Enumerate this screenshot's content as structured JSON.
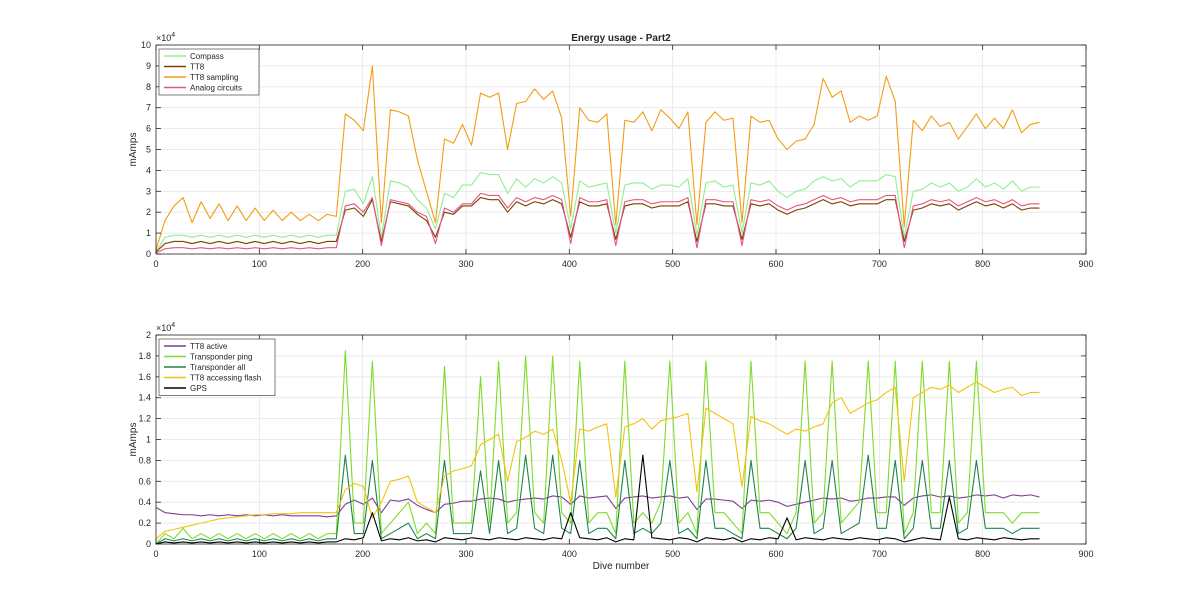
{
  "charts": [
    {
      "type": "line",
      "title": "Energy usage - Part2",
      "xlabel": "",
      "ylabel": "mAmps",
      "xlim": [
        0,
        900
      ],
      "ylim": [
        0,
        100000
      ],
      "x_ticks": [
        "0",
        "100",
        "200",
        "300",
        "400",
        "500",
        "600",
        "700",
        "800",
        "900"
      ],
      "y_ticks": [
        "0",
        "1",
        "2",
        "3",
        "4",
        "5",
        "6",
        "7",
        "8",
        "9",
        "10"
      ],
      "y_exponent": "×10",
      "y_exponent_power": "4",
      "grid": true,
      "legend_position": "top-left",
      "legend": [
        "Compass",
        "TT8",
        "TT8 sampling",
        "Analog circuits"
      ],
      "series": [
        {
          "name": "Compass",
          "color": "#90EE90",
          "values_x10000": [
            0.1,
            0.8,
            0.9,
            0.9,
            0.8,
            0.9,
            0.8,
            0.9,
            0.8,
            0.9,
            0.8,
            0.9,
            0.8,
            0.9,
            0.8,
            0.9,
            0.8,
            0.9,
            0.8,
            0.9,
            0.9,
            3.0,
            3.1,
            2.4,
            3.7,
            0.8,
            3.5,
            3.4,
            3.2,
            2.6,
            2.2,
            1.2,
            2.9,
            2.7,
            3.3,
            3.3,
            3.9,
            3.8,
            3.8,
            2.9,
            3.6,
            3.2,
            3.6,
            3.4,
            3.7,
            3.4,
            1.2,
            3.5,
            3.2,
            3.3,
            3.4,
            1.0,
            3.3,
            3.4,
            3.4,
            3.1,
            3.3,
            3.3,
            3.2,
            3.6,
            0.9,
            3.4,
            3.5,
            3.2,
            3.3,
            1.0,
            3.4,
            3.3,
            3.5,
            3.0,
            2.7,
            3.0,
            3.1,
            3.5,
            3.7,
            3.5,
            3.6,
            3.2,
            3.5,
            3.5,
            3.5,
            3.8,
            3.7,
            0.8,
            3.0,
            3.1,
            3.4,
            3.2,
            3.4,
            3.0,
            3.2,
            3.6,
            3.2,
            3.4,
            3.1,
            3.5,
            3.0,
            3.2,
            3.2
          ]
        },
        {
          "name": "TT8",
          "color": "#7B3F00",
          "values_x10000": [
            0.1,
            0.5,
            0.6,
            0.6,
            0.5,
            0.6,
            0.5,
            0.6,
            0.5,
            0.6,
            0.5,
            0.6,
            0.5,
            0.6,
            0.5,
            0.6,
            0.5,
            0.6,
            0.5,
            0.6,
            0.6,
            2.1,
            2.2,
            1.8,
            2.6,
            0.6,
            2.5,
            2.4,
            2.3,
            1.9,
            1.6,
            0.8,
            2.0,
            1.9,
            2.3,
            2.3,
            2.7,
            2.6,
            2.6,
            2.0,
            2.5,
            2.3,
            2.5,
            2.4,
            2.6,
            2.4,
            0.8,
            2.5,
            2.3,
            2.3,
            2.4,
            0.7,
            2.3,
            2.4,
            2.4,
            2.2,
            2.3,
            2.3,
            2.3,
            2.5,
            0.6,
            2.4,
            2.4,
            2.3,
            2.3,
            0.7,
            2.4,
            2.3,
            2.4,
            2.1,
            1.9,
            2.1,
            2.2,
            2.4,
            2.6,
            2.4,
            2.5,
            2.3,
            2.4,
            2.4,
            2.4,
            2.6,
            2.6,
            0.6,
            2.1,
            2.2,
            2.4,
            2.3,
            2.4,
            2.1,
            2.3,
            2.5,
            2.3,
            2.4,
            2.2,
            2.4,
            2.1,
            2.2,
            2.2
          ]
        },
        {
          "name": "TT8 sampling",
          "color": "#F39C12",
          "values_x10000": [
            0.2,
            1.6,
            2.3,
            2.7,
            1.5,
            2.5,
            1.7,
            2.4,
            1.6,
            2.3,
            1.6,
            2.2,
            1.6,
            2.1,
            1.6,
            2.0,
            1.6,
            1.9,
            1.6,
            1.9,
            1.8,
            6.7,
            6.4,
            5.9,
            9.0,
            1.5,
            6.9,
            6.8,
            6.6,
            4.5,
            3.0,
            1.5,
            5.5,
            5.3,
            6.2,
            5.2,
            7.7,
            7.5,
            7.7,
            5.0,
            7.2,
            7.3,
            7.9,
            7.4,
            7.8,
            6.5,
            1.8,
            7.0,
            6.4,
            6.3,
            6.7,
            1.4,
            6.4,
            6.3,
            6.8,
            5.9,
            6.9,
            6.5,
            6.0,
            6.8,
            1.4,
            6.3,
            6.8,
            6.4,
            6.5,
            1.5,
            6.6,
            6.3,
            6.4,
            5.5,
            5.0,
            5.4,
            5.5,
            6.2,
            8.4,
            7.5,
            7.8,
            6.3,
            6.6,
            6.4,
            6.6,
            8.5,
            7.3,
            1.3,
            6.4,
            5.9,
            6.6,
            6.1,
            6.3,
            5.5,
            6.1,
            6.7,
            6.0,
            6.5,
            6.0,
            6.9,
            5.8,
            6.2,
            6.3
          ]
        },
        {
          "name": "Analog circuits",
          "color": "#E75480",
          "values_x10000": [
            0.05,
            0.25,
            0.3,
            0.3,
            0.25,
            0.3,
            0.25,
            0.3,
            0.25,
            0.3,
            0.25,
            0.3,
            0.25,
            0.3,
            0.25,
            0.3,
            0.25,
            0.3,
            0.25,
            0.3,
            0.3,
            2.3,
            2.4,
            2.0,
            2.7,
            0.4,
            2.6,
            2.5,
            2.4,
            2.0,
            1.8,
            0.5,
            2.2,
            2.0,
            2.4,
            2.4,
            2.9,
            2.8,
            2.8,
            2.2,
            2.7,
            2.5,
            2.7,
            2.6,
            2.8,
            2.6,
            0.5,
            2.7,
            2.5,
            2.5,
            2.6,
            0.4,
            2.5,
            2.6,
            2.6,
            2.4,
            2.5,
            2.5,
            2.5,
            2.7,
            0.3,
            2.6,
            2.6,
            2.5,
            2.5,
            0.4,
            2.6,
            2.5,
            2.6,
            2.3,
            2.1,
            2.3,
            2.4,
            2.6,
            2.8,
            2.6,
            2.7,
            2.5,
            2.6,
            2.6,
            2.6,
            2.8,
            2.8,
            0.3,
            2.3,
            2.4,
            2.6,
            2.5,
            2.6,
            2.3,
            2.5,
            2.7,
            2.5,
            2.6,
            2.4,
            2.6,
            2.3,
            2.4,
            2.4
          ]
        }
      ]
    },
    {
      "type": "line",
      "title": "",
      "xlabel": "Dive number",
      "ylabel": "mAmps",
      "xlim": [
        0,
        900
      ],
      "ylim": [
        0,
        20000
      ],
      "x_ticks": [
        "0",
        "100",
        "200",
        "300",
        "400",
        "500",
        "600",
        "700",
        "800",
        "900"
      ],
      "y_ticks": [
        "0",
        "0.2",
        "0.4",
        "0.6",
        "0.8",
        "1",
        "1.2",
        "1.4",
        "1.6",
        "1.8",
        "2"
      ],
      "y_exponent": "×10",
      "y_exponent_power": "4",
      "grid": true,
      "legend_position": "top-left",
      "legend": [
        "TT8 active",
        "Transponder ping",
        "Transponder all",
        "TT8 accessing flash",
        "GPS"
      ],
      "series": [
        {
          "name": "TT8 active",
          "color": "#7D3C98",
          "values_x10000": [
            0.35,
            0.3,
            0.29,
            0.28,
            0.28,
            0.27,
            0.28,
            0.27,
            0.28,
            0.27,
            0.28,
            0.27,
            0.28,
            0.27,
            0.28,
            0.27,
            0.27,
            0.27,
            0.27,
            0.26,
            0.27,
            0.38,
            0.42,
            0.38,
            0.44,
            0.3,
            0.42,
            0.41,
            0.43,
            0.37,
            0.33,
            0.3,
            0.38,
            0.39,
            0.41,
            0.41,
            0.43,
            0.44,
            0.43,
            0.4,
            0.42,
            0.43,
            0.44,
            0.43,
            0.46,
            0.45,
            0.38,
            0.46,
            0.44,
            0.45,
            0.46,
            0.34,
            0.44,
            0.45,
            0.46,
            0.44,
            0.45,
            0.46,
            0.44,
            0.45,
            0.33,
            0.43,
            0.43,
            0.42,
            0.41,
            0.34,
            0.42,
            0.41,
            0.42,
            0.4,
            0.36,
            0.38,
            0.4,
            0.42,
            0.44,
            0.43,
            0.44,
            0.41,
            0.42,
            0.44,
            0.44,
            0.45,
            0.45,
            0.37,
            0.44,
            0.46,
            0.47,
            0.45,
            0.46,
            0.44,
            0.45,
            0.47,
            0.46,
            0.47,
            0.44,
            0.47,
            0.46,
            0.47,
            0.45
          ]
        },
        {
          "name": "Transponder ping",
          "color": "#7FDB2A",
          "values_x10000": [
            0.0,
            0.1,
            0.05,
            0.15,
            0.05,
            0.1,
            0.05,
            0.1,
            0.05,
            0.1,
            0.05,
            0.1,
            0.05,
            0.1,
            0.05,
            0.1,
            0.05,
            0.1,
            0.05,
            0.1,
            0.1,
            1.85,
            0.2,
            0.2,
            1.75,
            0.1,
            0.2,
            0.3,
            0.4,
            0.1,
            0.2,
            0.1,
            1.7,
            0.2,
            0.2,
            0.2,
            1.6,
            0.2,
            1.75,
            0.2,
            0.3,
            1.8,
            0.3,
            0.2,
            1.8,
            0.3,
            0.2,
            1.75,
            0.2,
            0.3,
            0.3,
            0.1,
            1.75,
            0.2,
            0.3,
            0.2,
            0.4,
            1.75,
            0.2,
            0.3,
            0.1,
            1.75,
            0.3,
            0.3,
            0.2,
            0.1,
            1.75,
            0.3,
            0.3,
            0.2,
            0.1,
            0.3,
            1.75,
            0.2,
            0.3,
            1.75,
            0.2,
            0.3,
            0.4,
            1.75,
            0.3,
            0.3,
            1.75,
            0.1,
            0.3,
            1.75,
            0.3,
            0.3,
            1.75,
            0.2,
            0.3,
            1.75,
            0.3,
            0.3,
            0.3,
            0.2,
            0.3,
            0.3,
            0.3
          ]
        },
        {
          "name": "Transponder all",
          "color": "#1E8449",
          "values_x10000": [
            0.0,
            0.05,
            0.03,
            0.05,
            0.03,
            0.05,
            0.03,
            0.05,
            0.03,
            0.05,
            0.03,
            0.05,
            0.03,
            0.05,
            0.03,
            0.05,
            0.03,
            0.05,
            0.03,
            0.05,
            0.05,
            0.85,
            0.1,
            0.1,
            0.8,
            0.05,
            0.1,
            0.15,
            0.2,
            0.05,
            0.1,
            0.05,
            0.8,
            0.1,
            0.1,
            0.1,
            0.7,
            0.1,
            0.8,
            0.1,
            0.15,
            0.85,
            0.15,
            0.1,
            0.85,
            0.15,
            0.1,
            0.8,
            0.1,
            0.15,
            0.15,
            0.05,
            0.8,
            0.1,
            0.15,
            0.1,
            0.2,
            0.8,
            0.1,
            0.15,
            0.05,
            0.8,
            0.15,
            0.15,
            0.1,
            0.05,
            0.8,
            0.15,
            0.15,
            0.1,
            0.05,
            0.15,
            0.8,
            0.1,
            0.15,
            0.8,
            0.1,
            0.15,
            0.2,
            0.85,
            0.15,
            0.15,
            0.8,
            0.05,
            0.15,
            0.8,
            0.15,
            0.15,
            0.8,
            0.1,
            0.15,
            0.8,
            0.15,
            0.15,
            0.15,
            0.1,
            0.15,
            0.15,
            0.15
          ]
        },
        {
          "name": "TT8 accessing flash",
          "color": "#F4C20D",
          "values_x10000": [
            0.05,
            0.12,
            0.14,
            0.16,
            0.18,
            0.2,
            0.22,
            0.24,
            0.25,
            0.26,
            0.27,
            0.28,
            0.28,
            0.29,
            0.29,
            0.29,
            0.3,
            0.3,
            0.3,
            0.3,
            0.3,
            0.52,
            0.58,
            0.55,
            0.25,
            0.4,
            0.6,
            0.62,
            0.65,
            0.4,
            0.35,
            0.3,
            0.65,
            0.7,
            0.72,
            0.75,
            0.95,
            1.0,
            1.05,
            0.6,
            0.98,
            1.02,
            1.08,
            1.05,
            1.1,
            0.8,
            0.4,
            1.1,
            1.08,
            1.12,
            1.15,
            0.45,
            1.12,
            1.15,
            1.2,
            1.1,
            1.18,
            1.2,
            1.22,
            1.25,
            0.5,
            1.3,
            1.25,
            1.2,
            1.15,
            0.55,
            1.22,
            1.18,
            1.15,
            1.1,
            1.05,
            1.1,
            1.08,
            1.12,
            1.15,
            1.35,
            1.4,
            1.25,
            1.3,
            1.35,
            1.38,
            1.45,
            1.5,
            0.6,
            1.4,
            1.45,
            1.5,
            1.48,
            1.52,
            1.45,
            1.5,
            1.55,
            1.5,
            1.45,
            1.48,
            1.5,
            1.42,
            1.45,
            1.45
          ]
        },
        {
          "name": "GPS",
          "color": "#000000",
          "values_x10000": [
            0.0,
            0.02,
            0.01,
            0.02,
            0.01,
            0.02,
            0.01,
            0.02,
            0.01,
            0.02,
            0.01,
            0.02,
            0.01,
            0.02,
            0.01,
            0.02,
            0.01,
            0.02,
            0.01,
            0.02,
            0.02,
            0.05,
            0.04,
            0.06,
            0.3,
            0.03,
            0.05,
            0.04,
            0.06,
            0.03,
            0.04,
            0.02,
            0.06,
            0.05,
            0.04,
            0.06,
            0.05,
            0.04,
            0.06,
            0.05,
            0.04,
            0.06,
            0.05,
            0.04,
            0.06,
            0.05,
            0.3,
            0.06,
            0.05,
            0.04,
            0.06,
            0.02,
            0.05,
            0.04,
            0.85,
            0.06,
            0.05,
            0.04,
            0.06,
            0.05,
            0.02,
            0.06,
            0.05,
            0.04,
            0.06,
            0.02,
            0.05,
            0.04,
            0.06,
            0.05,
            0.25,
            0.04,
            0.06,
            0.05,
            0.04,
            0.06,
            0.05,
            0.04,
            0.06,
            0.05,
            0.04,
            0.06,
            0.05,
            0.02,
            0.04,
            0.06,
            0.05,
            0.04,
            0.45,
            0.05,
            0.04,
            0.06,
            0.05,
            0.04,
            0.06,
            0.05,
            0.04,
            0.05,
            0.05
          ]
        }
      ]
    }
  ]
}
